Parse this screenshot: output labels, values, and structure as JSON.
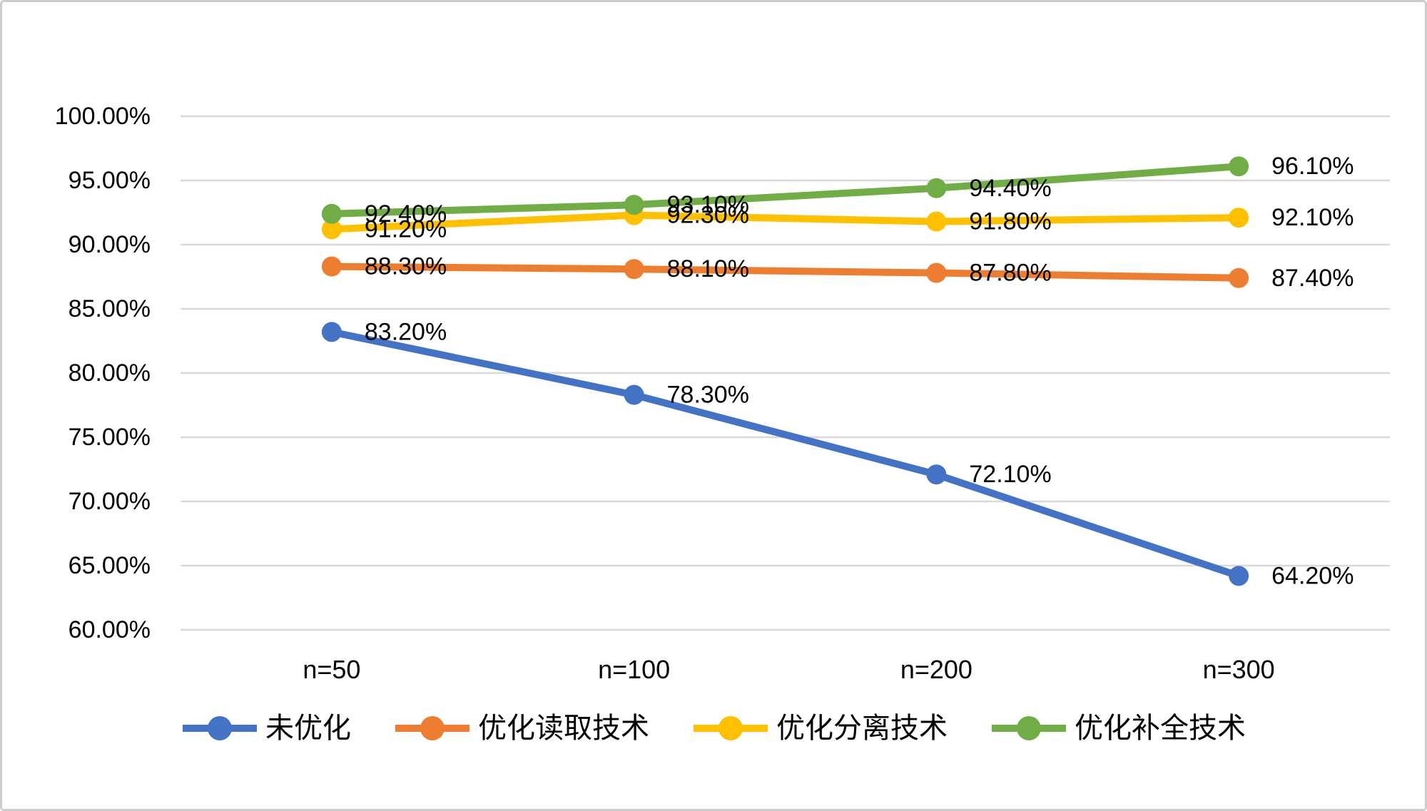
{
  "chart_data": {
    "type": "line",
    "title": "",
    "categories": [
      "n=50",
      "n=100",
      "n=200",
      "n=300"
    ],
    "series": [
      {
        "name": "未优化",
        "color": "#4472C4",
        "values": [
          83.2,
          78.3,
          72.1,
          64.2
        ],
        "data_labels": [
          "83.20%",
          "78.30%",
          "72.10%",
          "64.20%"
        ]
      },
      {
        "name": "优化读取技术",
        "color": "#ED7D31",
        "values": [
          88.3,
          88.1,
          87.8,
          87.4
        ],
        "data_labels": [
          "88.30%",
          "88.10%",
          "87.80%",
          "87.40%"
        ]
      },
      {
        "name": "优化分离技术",
        "color": "#FFC000",
        "values": [
          91.2,
          92.3,
          91.8,
          92.1
        ],
        "data_labels": [
          "91.20%",
          "92.30%",
          "91.80%",
          "92.10%"
        ]
      },
      {
        "name": "优化补全技术",
        "color": "#70AD47",
        "values": [
          92.4,
          93.1,
          94.4,
          96.1
        ],
        "data_labels": [
          "92.40%",
          "93.10%",
          "94.40%",
          "96.10%"
        ]
      }
    ],
    "y_axis": {
      "min": 60,
      "max": 100,
      "step": 5,
      "tick_labels": [
        "100.00%",
        "95.00%",
        "90.00%",
        "85.00%",
        "80.00%",
        "75.00%",
        "70.00%",
        "65.00%",
        "60.00%"
      ]
    },
    "x_axis": {
      "tick_labels": [
        "n=50",
        "n=100",
        "n=200",
        "n=300"
      ]
    },
    "grid": true,
    "legend_position": "bottom"
  },
  "colors": {
    "background": "#FFFFFF",
    "border": "#CDCDCD",
    "gridline": "#D9D9D9",
    "text": "#000000"
  }
}
